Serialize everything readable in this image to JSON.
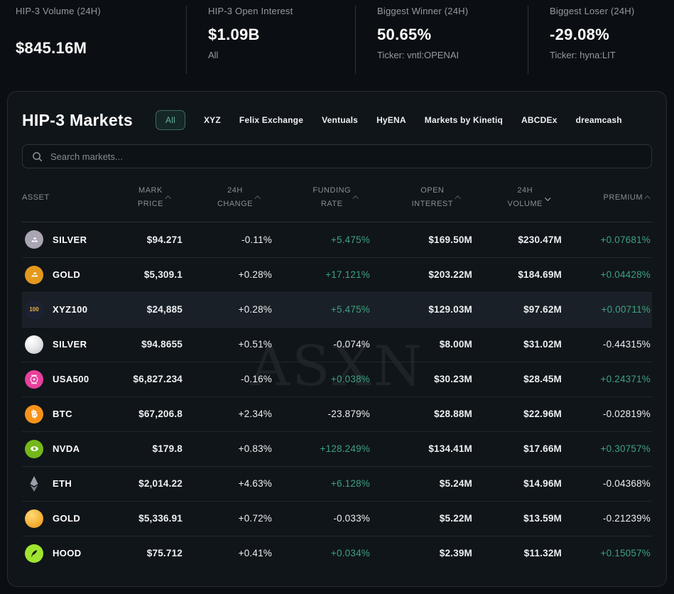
{
  "stats": [
    {
      "label": "HIP-3 Volume (24H)",
      "value": "$845.16M",
      "sub": ""
    },
    {
      "label": "HIP-3 Open Interest",
      "value": "$1.09B",
      "sub": "All"
    },
    {
      "label": "Biggest Winner (24H)",
      "value": "50.65%",
      "sub": "Ticker: vntl:OPENAI"
    },
    {
      "label": "Biggest Loser (24H)",
      "value": "-29.08%",
      "sub": "Ticker: hyna:LIT"
    }
  ],
  "panel": {
    "title": "HIP-3 Markets",
    "tabs": [
      {
        "label": "All",
        "active": true
      },
      {
        "label": "XYZ",
        "active": false
      },
      {
        "label": "Felix Exchange",
        "active": false
      },
      {
        "label": "Ventuals",
        "active": false
      },
      {
        "label": "HyENA",
        "active": false
      },
      {
        "label": "Markets by Kinetiq",
        "active": false
      },
      {
        "label": "ABCDEx",
        "active": false
      },
      {
        "label": "dreamcash",
        "active": false
      }
    ],
    "search_placeholder": "Search markets...",
    "watermark": "ASXN"
  },
  "table": {
    "columns": [
      {
        "id": "asset",
        "lines": [
          "ASSET"
        ],
        "sort": null
      },
      {
        "id": "mark_price",
        "lines": [
          "MARK",
          "PRICE"
        ],
        "sort": "none"
      },
      {
        "id": "change",
        "lines": [
          "24H",
          "CHANGE"
        ],
        "sort": "none"
      },
      {
        "id": "funding",
        "lines": [
          "FUNDING",
          "RATE"
        ],
        "sort": "none"
      },
      {
        "id": "open_interest",
        "lines": [
          "OPEN",
          "INTEREST"
        ],
        "sort": "none"
      },
      {
        "id": "volume",
        "lines": [
          "24H",
          "VOLUME"
        ],
        "sort": "desc"
      },
      {
        "id": "premium",
        "lines": [
          "PREMIUM"
        ],
        "sort": "none"
      }
    ],
    "rows": [
      {
        "asset": "SILVER",
        "icon": "silver-ingots",
        "icon_text": "",
        "mark_price": "$94.271",
        "change": "-0.11%",
        "funding": "+5.475%",
        "open_interest": "$169.50M",
        "volume": "$230.47M",
        "premium": "+0.07681%",
        "highlighted": false
      },
      {
        "asset": "GOLD",
        "icon": "gold-ingots",
        "icon_text": "",
        "mark_price": "$5,309.1",
        "change": "+0.28%",
        "funding": "+17.121%",
        "open_interest": "$203.22M",
        "volume": "$184.69M",
        "premium": "+0.04428%",
        "highlighted": false
      },
      {
        "asset": "XYZ100",
        "icon": "xyz100",
        "icon_text": "100",
        "mark_price": "$24,885",
        "change": "+0.28%",
        "funding": "+5.475%",
        "open_interest": "$129.03M",
        "volume": "$97.62M",
        "premium": "+0.00711%",
        "highlighted": true
      },
      {
        "asset": "SILVER",
        "icon": "silver-orb",
        "icon_text": "",
        "mark_price": "$94.8655",
        "change": "+0.51%",
        "funding": "-0.074%",
        "open_interest": "$8.00M",
        "volume": "$31.02M",
        "premium": "-0.44315%",
        "highlighted": false
      },
      {
        "asset": "USA500",
        "icon": "usa500",
        "icon_text": "",
        "mark_price": "$6,827.234",
        "change": "-0.16%",
        "funding": "+0.038%",
        "open_interest": "$30.23M",
        "volume": "$28.45M",
        "premium": "+0.24371%",
        "highlighted": false
      },
      {
        "asset": "BTC",
        "icon": "btc",
        "icon_text": "฿",
        "mark_price": "$67,206.8",
        "change": "+2.34%",
        "funding": "-23.879%",
        "open_interest": "$28.88M",
        "volume": "$22.96M",
        "premium": "-0.02819%",
        "highlighted": false
      },
      {
        "asset": "NVDA",
        "icon": "nvda",
        "icon_text": "",
        "mark_price": "$179.8",
        "change": "+0.83%",
        "funding": "+128.249%",
        "open_interest": "$134.41M",
        "volume": "$17.66M",
        "premium": "+0.30757%",
        "highlighted": false
      },
      {
        "asset": "ETH",
        "icon": "eth",
        "icon_text": "",
        "mark_price": "$2,014.22",
        "change": "+4.63%",
        "funding": "+6.128%",
        "open_interest": "$5.24M",
        "volume": "$14.96M",
        "premium": "-0.04368%",
        "highlighted": false
      },
      {
        "asset": "GOLD",
        "icon": "gold-orb",
        "icon_text": "",
        "mark_price": "$5,336.91",
        "change": "+0.72%",
        "funding": "-0.033%",
        "open_interest": "$5.22M",
        "volume": "$13.59M",
        "premium": "-0.21239%",
        "highlighted": false
      },
      {
        "asset": "HOOD",
        "icon": "hood",
        "icon_text": "",
        "mark_price": "$75.712",
        "change": "+0.41%",
        "funding": "+0.034%",
        "open_interest": "$2.39M",
        "volume": "$11.32M",
        "premium": "+0.15057%",
        "highlighted": false
      }
    ]
  },
  "colors": {
    "positive": "#3eb78c",
    "negative": "#f04a66",
    "accent_teal": "#66b2a0",
    "card_bg": "#10151a",
    "page_bg": "#0b0f13"
  }
}
